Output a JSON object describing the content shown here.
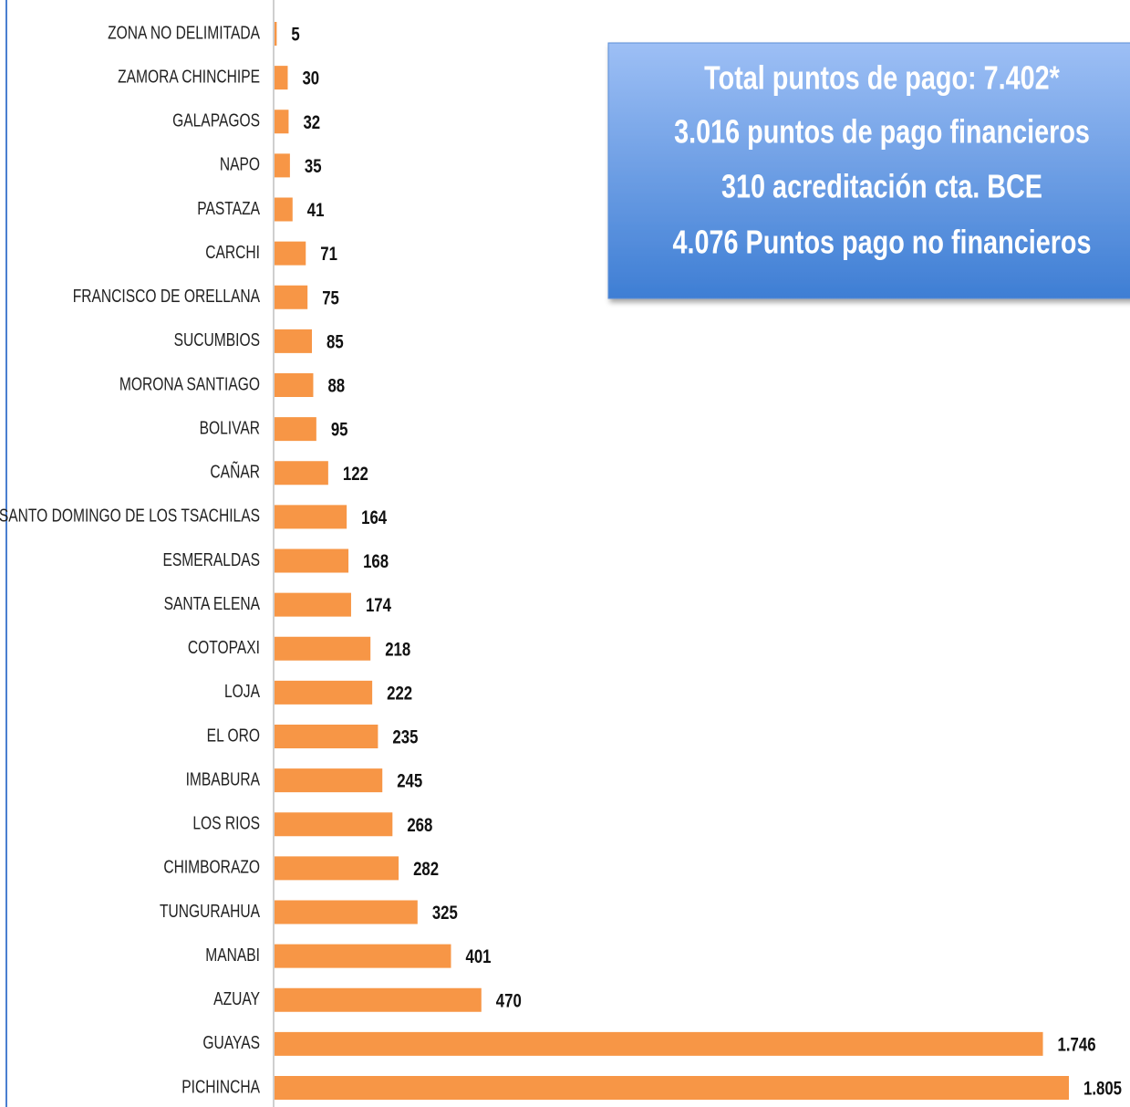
{
  "chart_data": {
    "type": "bar",
    "orientation": "horizontal",
    "color": "#f79646",
    "categories": [
      "ZONA NO DELIMITADA",
      "ZAMORA CHINCHIPE",
      "GALAPAGOS",
      "NAPO",
      "PASTAZA",
      "CARCHI",
      "FRANCISCO DE ORELLANA",
      "SUCUMBIOS",
      "MORONA SANTIAGO",
      "BOLIVAR",
      "CAÑAR",
      "SANTO DOMINGO DE LOS TSACHILAS",
      "ESMERALDAS",
      "SANTA ELENA",
      "COTOPAXI",
      "LOJA",
      "EL ORO",
      "IMBABURA",
      "LOS RIOS",
      "CHIMBORAZO",
      "TUNGURAHUA",
      "MANABI",
      "AZUAY",
      "GUAYAS",
      "PICHINCHA"
    ],
    "values": [
      5,
      30,
      32,
      35,
      41,
      71,
      75,
      85,
      88,
      95,
      122,
      164,
      168,
      174,
      218,
      222,
      235,
      245,
      268,
      282,
      325,
      401,
      470,
      1746,
      1805
    ],
    "value_labels": [
      "5",
      "30",
      "32",
      "35",
      "41",
      "71",
      "75",
      "85",
      "88",
      "95",
      "122",
      "164",
      "168",
      "174",
      "218",
      "222",
      "235",
      "245",
      "268",
      "282",
      "325",
      "401",
      "470",
      "1.746",
      "1.805"
    ],
    "annotations": [
      "Total puntos de pago: 7.402*",
      "3.016 puntos de pago financieros",
      "310 acreditación cta. BCE",
      "4.076  Puntos pago no financieros"
    ]
  }
}
